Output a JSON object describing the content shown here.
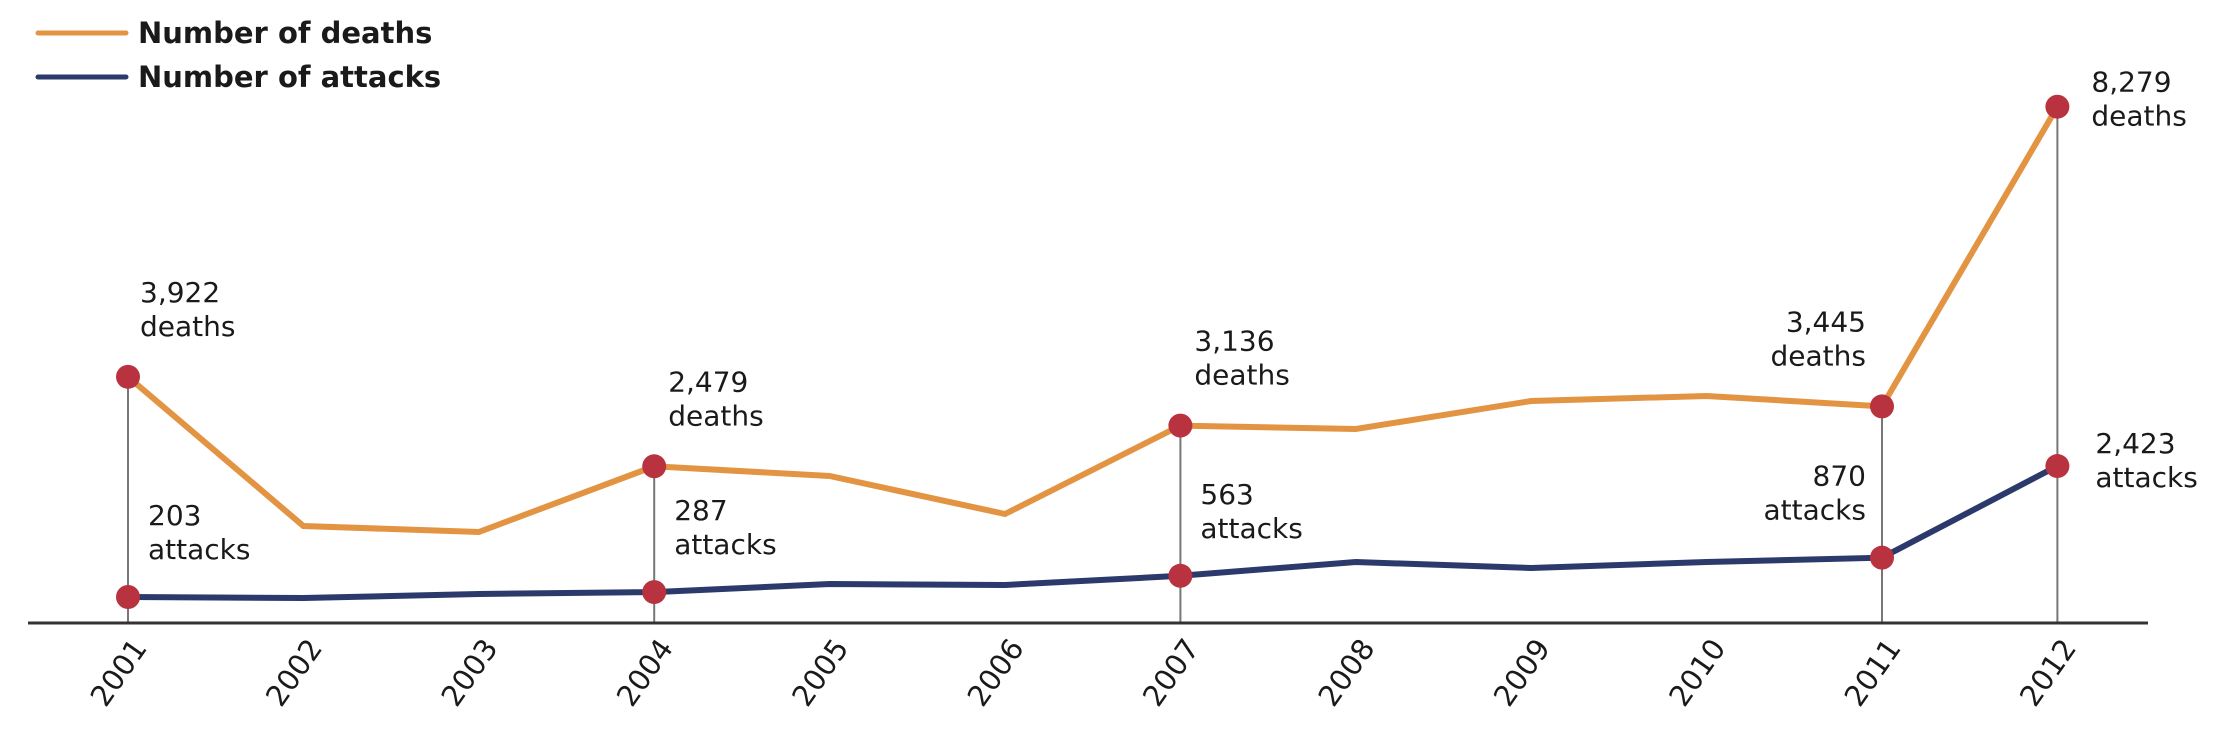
{
  "chart_data": {
    "type": "line",
    "title": "",
    "xlabel": "",
    "ylabel": "",
    "x": [
      "2001",
      "2002",
      "2003",
      "2004",
      "2005",
      "2006",
      "2007",
      "2008",
      "2009",
      "2010",
      "2011",
      "2012"
    ],
    "series": [
      {
        "name": "Number of deaths",
        "color": "#E39442",
        "values": [
          3922,
          1516,
          1419,
          2479,
          2323,
          1710,
          3136,
          3080,
          3532,
          3613,
          3445,
          8279
        ]
      },
      {
        "name": "Number of attacks",
        "color": "#2B3A6B",
        "values": [
          203,
          186,
          254,
          287,
          424,
          407,
          563,
          797,
          695,
          797,
          870,
          2423
        ]
      }
    ],
    "highlight_years": [
      "2001",
      "2004",
      "2007",
      "2011",
      "2012"
    ],
    "marker_color": "#B8323F",
    "annotations": [
      {
        "year": "2001",
        "series": "deaths",
        "value": "3,922",
        "unit": "deaths"
      },
      {
        "year": "2001",
        "series": "attacks",
        "value": "203",
        "unit": "attacks"
      },
      {
        "year": "2004",
        "series": "deaths",
        "value": "2,479",
        "unit": "deaths"
      },
      {
        "year": "2004",
        "series": "attacks",
        "value": "287",
        "unit": "attacks"
      },
      {
        "year": "2007",
        "series": "deaths",
        "value": "3,136",
        "unit": "deaths"
      },
      {
        "year": "2007",
        "series": "attacks",
        "value": "563",
        "unit": "attacks"
      },
      {
        "year": "2011",
        "series": "deaths",
        "value": "3,445",
        "unit": "deaths"
      },
      {
        "year": "2011",
        "series": "attacks",
        "value": "870",
        "unit": "attacks"
      },
      {
        "year": "2012",
        "series": "deaths",
        "value": "8,279",
        "unit": "deaths"
      },
      {
        "year": "2012",
        "series": "attacks",
        "value": "2,423",
        "unit": "attacks"
      }
    ],
    "legend_position": "top-left",
    "grid": false
  },
  "legend": {
    "deaths_label": "Number of deaths",
    "attacks_label": "Number of attacks"
  }
}
